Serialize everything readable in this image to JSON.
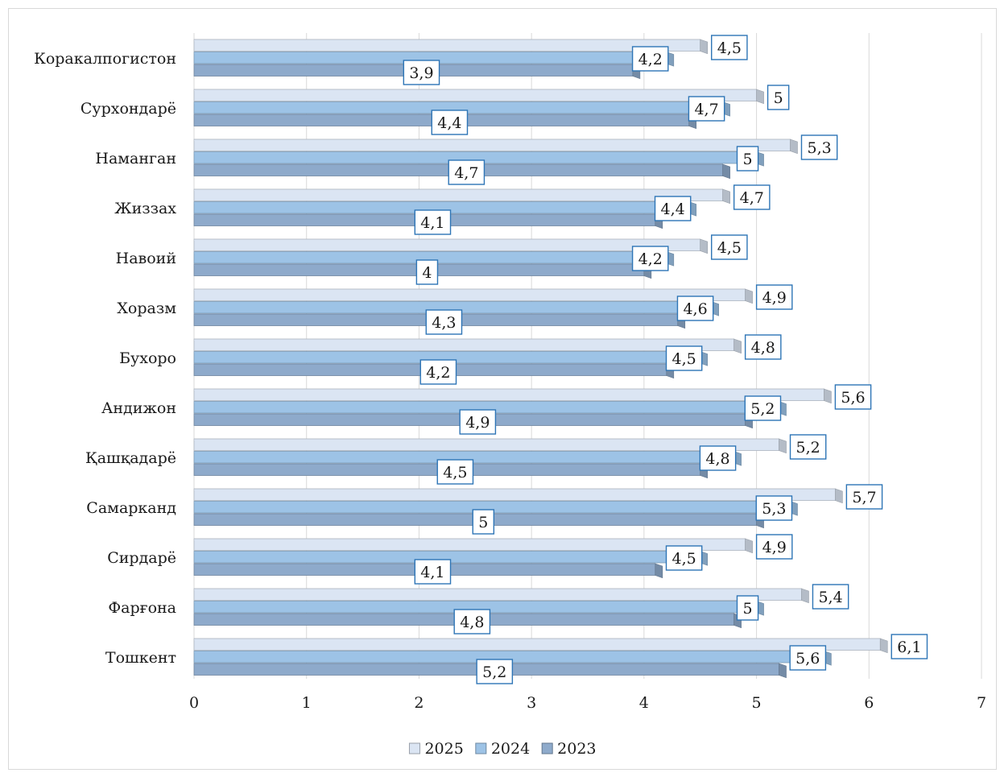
{
  "chart_data": {
    "type": "bar",
    "orientation": "horizontal",
    "style": "3d-clustered",
    "categories": [
      "Коракалпогистон",
      "Сурхондарё",
      "Наманган",
      "Жиззах",
      "Навоий",
      "Хоразм",
      "Бухоро",
      "Андижон",
      "Қашқадарё",
      "Самарканд",
      "Сирдарё",
      "Фарғона",
      "Тошкент"
    ],
    "series": [
      {
        "name": "2025",
        "values": [
          4.5,
          5,
          5.3,
          4.7,
          4.5,
          4.9,
          4.8,
          5.6,
          5.2,
          5.7,
          4.9,
          5.4,
          6.1
        ],
        "labels": [
          "4,5",
          "5",
          "5,3",
          "4,7",
          "4,5",
          "4,9",
          "4,8",
          "5,6",
          "5,2",
          "5,7",
          "4,9",
          "5,4",
          "6,1"
        ],
        "color": "#dbe5f3"
      },
      {
        "name": "2024",
        "values": [
          4.2,
          4.7,
          5,
          4.4,
          4.2,
          4.6,
          4.5,
          5.2,
          4.8,
          5.3,
          4.5,
          5,
          5.6
        ],
        "labels": [
          "4,2",
          "4,7",
          "5",
          "4,4",
          "4,2",
          "4,6",
          "4,5",
          "5,2",
          "4,8",
          "5,3",
          "4,5",
          "5",
          "5,6"
        ],
        "color": "#9dc3e6"
      },
      {
        "name": "2023",
        "values": [
          3.9,
          4.4,
          4.7,
          4.1,
          4,
          4.3,
          4.2,
          4.9,
          4.5,
          5,
          4.1,
          4.8,
          5.2
        ],
        "labels": [
          "3,9",
          "4,4",
          "4,7",
          "4,1",
          "4",
          "4,3",
          "4,2",
          "4,9",
          "4,5",
          "5",
          "4,1",
          "4,8",
          "5,2"
        ],
        "color": "#8eaacb"
      }
    ],
    "xlim": [
      0,
      7
    ],
    "ticks": [
      0,
      1,
      2,
      3,
      4,
      5,
      6,
      7
    ],
    "tick_labels": [
      "0",
      "1",
      "2",
      "3",
      "4",
      "5",
      "6",
      "7"
    ],
    "grid": true,
    "legend": "bottom",
    "title": "",
    "xlabel": "",
    "ylabel": "",
    "label_border_color": "#2e75b6"
  }
}
